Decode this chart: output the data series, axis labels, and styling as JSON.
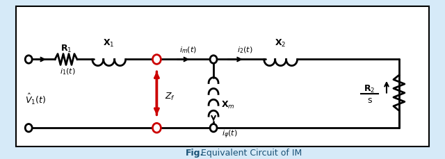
{
  "bg_color": "#d6eaf8",
  "circuit_bg": "#ffffff",
  "line_color": "#000000",
  "red_color": "#cc0000",
  "label_R1": "R$_1$",
  "label_X1": "X$_1$",
  "label_X2": "X$_2$",
  "label_Xm": "X$_m$",
  "label_Zf": "Z$_f$",
  "label_R2s": "R$_2$",
  "label_s": "s",
  "label_i1": "$i_1(t)$",
  "label_i2": "$i_2(t)$",
  "label_im": "$i_m(t)$",
  "label_ip": "$i_{\\varphi}(t)$",
  "label_V1": "$\\hat{V}_1(t)$",
  "fig_bold": "Fig.",
  "fig_rest": "  Equivalent Circuit of IM",
  "lw": 2.0,
  "caption_color": "#1a5276"
}
